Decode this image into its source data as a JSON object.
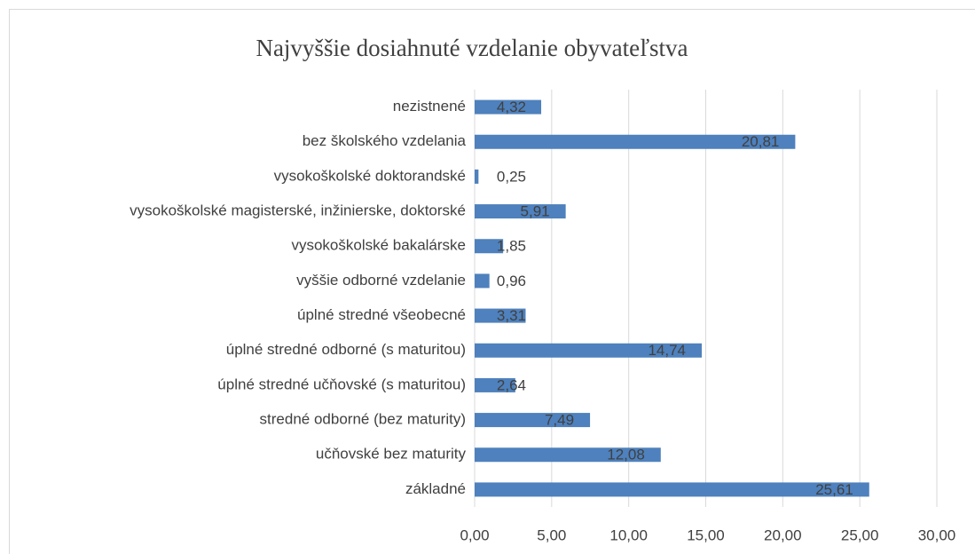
{
  "chart_data": {
    "type": "bar",
    "orientation": "horizontal",
    "title": "Najvyššie dosiahnuté vzdelanie obyvateľstva",
    "categories": [
      "nezistnené",
      "bez školského vzdelania",
      "vysokoškolské doktorandské",
      "vysokoškolské magisterské, inžinierske, doktorské",
      "vysokoškolské bakalárske",
      "vyššie odborné vzdelanie",
      "úplné stredné všeobecné",
      "úplné stredné odborné (s maturitou)",
      "úplné stredné učňovské (s maturitou)",
      "stredné odborné (bez maturity)",
      "učňovské bez maturity",
      "základné"
    ],
    "values": [
      4.32,
      20.81,
      0.25,
      5.91,
      1.85,
      0.96,
      3.31,
      14.74,
      2.64,
      7.49,
      12.08,
      25.61
    ],
    "value_labels": [
      "4,32",
      "20,81",
      "0,25",
      "5,91",
      "1,85",
      "0,96",
      "3,31",
      "14,74",
      "2,64",
      "7,49",
      "12,08",
      "25,61"
    ],
    "color": "#4e81bd",
    "xlim": [
      0,
      30
    ],
    "xticks": [
      {
        "value": 0,
        "label": "0,00"
      },
      {
        "value": 5,
        "label": "5,00"
      },
      {
        "value": 10,
        "label": "10,00"
      },
      {
        "value": 15,
        "label": "15,00"
      },
      {
        "value": 20,
        "label": "20,00"
      },
      {
        "value": 25,
        "label": "25,00"
      },
      {
        "value": 30,
        "label": "30,00"
      }
    ],
    "grid": true
  }
}
